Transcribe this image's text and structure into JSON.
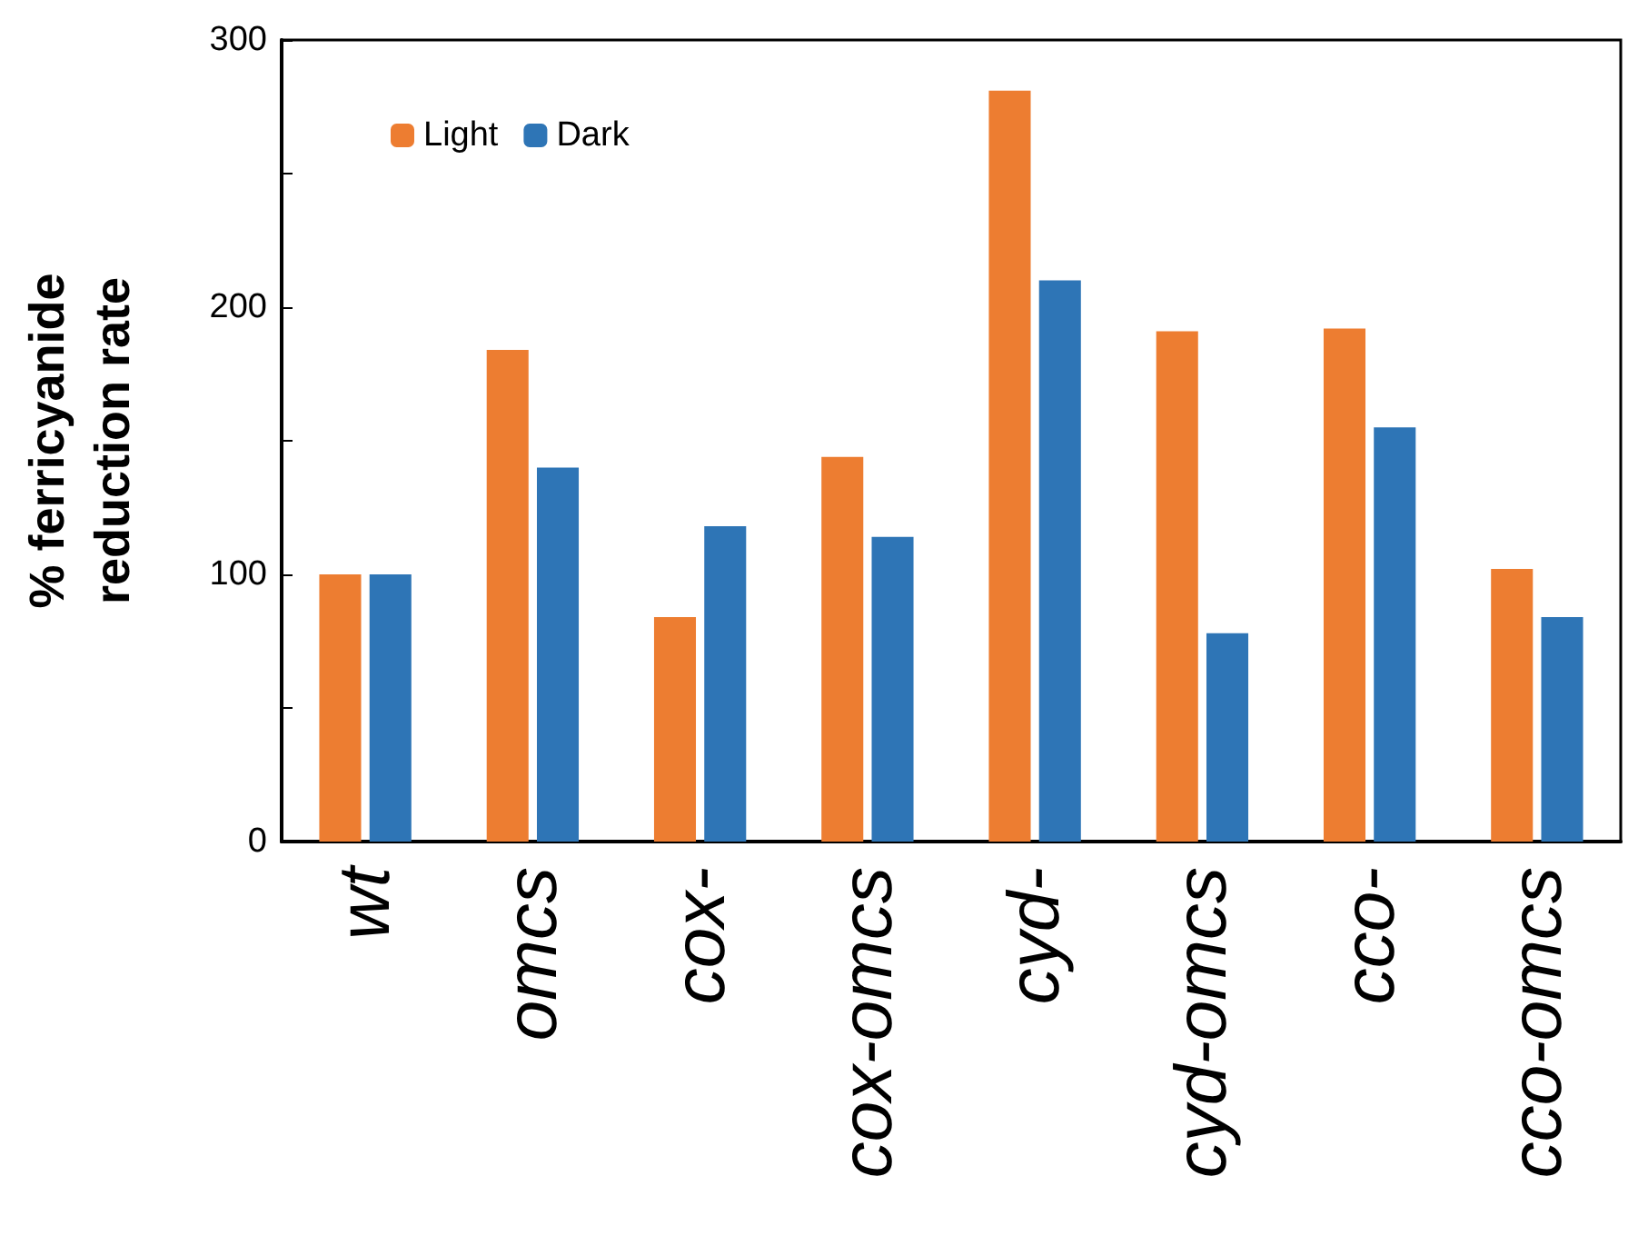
{
  "chart_data": {
    "type": "bar",
    "ylabel": "% ferricyanide\nreduction rate",
    "categories": [
      "wt",
      "omcs",
      "cox-",
      "cox-omcs",
      "cyd-",
      "cyd-omcs",
      "cco-",
      "cco-omcs"
    ],
    "series": [
      {
        "name": "Light",
        "color": "#ed7d31",
        "values": [
          100,
          184,
          84,
          144,
          281,
          191,
          192,
          102
        ]
      },
      {
        "name": "Dark",
        "color": "#2e75b6",
        "values": [
          100,
          140,
          118,
          114,
          210,
          78,
          155,
          84
        ]
      }
    ],
    "ylim": [
      0,
      300
    ],
    "yticks": [
      0,
      {
        "value": 50,
        "label": null
      },
      100,
      {
        "value": 150,
        "label": null
      },
      200,
      {
        "value": 250,
        "label": null
      },
      300
    ],
    "grid": false,
    "legend": "top left"
  }
}
